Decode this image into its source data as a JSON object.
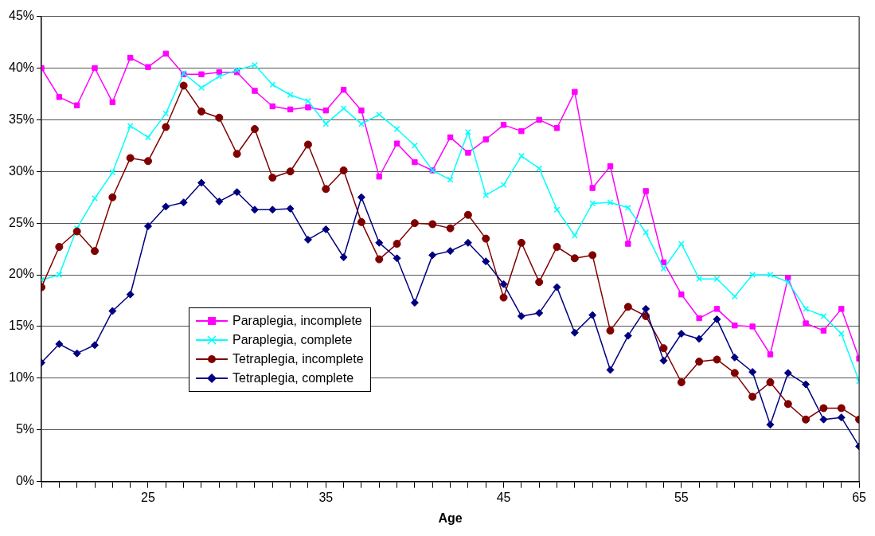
{
  "chart_data": {
    "type": "line",
    "xlabel": "Age",
    "x": [
      19,
      20,
      21,
      22,
      23,
      24,
      25,
      26,
      27,
      28,
      29,
      30,
      31,
      32,
      33,
      34,
      35,
      36,
      37,
      38,
      39,
      40,
      41,
      42,
      43,
      44,
      45,
      46,
      47,
      48,
      49,
      50,
      51,
      52,
      53,
      54,
      55,
      56,
      57,
      58,
      59,
      60,
      61,
      62,
      63,
      64,
      65
    ],
    "xlim": [
      19,
      65
    ],
    "xticks": [
      {
        "value": 19,
        "label": null
      },
      {
        "value": 20,
        "label": null
      },
      {
        "value": 21,
        "label": null
      },
      {
        "value": 22,
        "label": null
      },
      {
        "value": 23,
        "label": null
      },
      {
        "value": 24,
        "label": null
      },
      25,
      {
        "value": 26,
        "label": null
      },
      {
        "value": 27,
        "label": null
      },
      {
        "value": 28,
        "label": null
      },
      {
        "value": 29,
        "label": null
      },
      {
        "value": 30,
        "label": null
      },
      {
        "value": 31,
        "label": null
      },
      {
        "value": 32,
        "label": null
      },
      {
        "value": 33,
        "label": null
      },
      {
        "value": 34,
        "label": null
      },
      35,
      {
        "value": 36,
        "label": null
      },
      {
        "value": 37,
        "label": null
      },
      {
        "value": 38,
        "label": null
      },
      {
        "value": 39,
        "label": null
      },
      {
        "value": 40,
        "label": null
      },
      {
        "value": 41,
        "label": null
      },
      {
        "value": 42,
        "label": null
      },
      {
        "value": 43,
        "label": null
      },
      {
        "value": 44,
        "label": null
      },
      45,
      {
        "value": 46,
        "label": null
      },
      {
        "value": 47,
        "label": null
      },
      {
        "value": 48,
        "label": null
      },
      {
        "value": 49,
        "label": null
      },
      {
        "value": 50,
        "label": null
      },
      {
        "value": 51,
        "label": null
      },
      {
        "value": 52,
        "label": null
      },
      {
        "value": 53,
        "label": null
      },
      {
        "value": 54,
        "label": null
      },
      55,
      {
        "value": 56,
        "label": null
      },
      {
        "value": 57,
        "label": null
      },
      {
        "value": 58,
        "label": null
      },
      {
        "value": 59,
        "label": null
      },
      {
        "value": 60,
        "label": null
      },
      {
        "value": 61,
        "label": null
      },
      {
        "value": 62,
        "label": null
      },
      {
        "value": 63,
        "label": null
      },
      {
        "value": 64,
        "label": null
      },
      65
    ],
    "ylim": [
      0,
      45
    ],
    "yticks": [
      {
        "value": 0,
        "label": "0%"
      },
      {
        "value": 5,
        "label": "5%"
      },
      {
        "value": 10,
        "label": "10%"
      },
      {
        "value": 15,
        "label": "15%"
      },
      {
        "value": 20,
        "label": "20%"
      },
      {
        "value": 25,
        "label": "25%"
      },
      {
        "value": 30,
        "label": "30%"
      },
      {
        "value": 35,
        "label": "35%"
      },
      {
        "value": 40,
        "label": "40%"
      },
      {
        "value": 45,
        "label": "45%"
      }
    ],
    "grid": "y",
    "legend": "bottom left",
    "line_style": "solid",
    "series": [
      {
        "name": "Paraplegia, incomplete",
        "color": "#ff00ff",
        "marker": "square",
        "values": [
          40.0,
          37.2,
          36.4,
          40.0,
          36.7,
          41.0,
          40.1,
          41.4,
          39.4,
          39.4,
          39.6,
          39.6,
          37.8,
          36.3,
          36.0,
          36.2,
          35.9,
          37.9,
          35.9,
          29.5,
          32.7,
          30.9,
          30.1,
          33.3,
          31.8,
          33.1,
          34.5,
          33.9,
          35.0,
          34.2,
          37.7,
          28.4,
          30.5,
          23.0,
          28.1,
          21.2,
          18.1,
          15.8,
          16.7,
          15.1,
          15.0,
          12.3,
          19.7,
          15.3,
          14.6,
          16.7,
          11.9
        ]
      },
      {
        "name": "Paraplegia, complete",
        "color": "#00ffff",
        "marker": "cross",
        "values": [
          19.5,
          20.0,
          24.5,
          27.4,
          29.9,
          34.4,
          33.3,
          35.6,
          39.5,
          38.1,
          39.2,
          39.8,
          40.3,
          38.4,
          37.4,
          36.8,
          34.6,
          36.1,
          34.6,
          35.5,
          34.1,
          32.5,
          30.1,
          29.2,
          33.8,
          27.7,
          28.7,
          31.5,
          30.3,
          26.3,
          23.8,
          26.9,
          27.0,
          26.5,
          24.1,
          20.6,
          23.0,
          19.6,
          19.6,
          17.9,
          20.0,
          20.0,
          19.3,
          16.7,
          16.0,
          14.3,
          9.7
        ]
      },
      {
        "name": "Tetraplegia, incomplete",
        "color": "#800000",
        "marker": "circle",
        "values": [
          18.8,
          22.7,
          24.2,
          22.3,
          27.5,
          31.3,
          31.0,
          34.3,
          38.3,
          35.8,
          35.2,
          31.7,
          34.1,
          29.4,
          30.0,
          32.6,
          28.3,
          30.1,
          25.1,
          21.5,
          23.0,
          25.0,
          24.9,
          24.5,
          25.8,
          23.5,
          17.8,
          23.1,
          19.3,
          22.7,
          21.6,
          21.9,
          14.6,
          16.9,
          16.0,
          12.9,
          9.6,
          11.6,
          11.8,
          10.5,
          8.2,
          9.6,
          7.5,
          6.0,
          7.1,
          7.1,
          6.0
        ]
      },
      {
        "name": "Tetraplegia, complete",
        "color": "#000080",
        "marker": "diamond",
        "values": [
          11.5,
          13.3,
          12.4,
          13.2,
          16.5,
          18.1,
          24.7,
          26.6,
          27.0,
          28.9,
          27.1,
          28.0,
          26.3,
          26.3,
          26.4,
          23.4,
          24.4,
          21.7,
          27.5,
          23.1,
          21.6,
          17.3,
          21.9,
          22.3,
          23.1,
          21.3,
          19.1,
          16.0,
          16.3,
          18.8,
          14.4,
          16.1,
          10.8,
          14.1,
          16.7,
          11.7,
          14.3,
          13.8,
          15.7,
          12.0,
          10.6,
          5.5,
          10.5,
          9.4,
          6.0,
          6.2,
          3.4
        ]
      }
    ]
  }
}
